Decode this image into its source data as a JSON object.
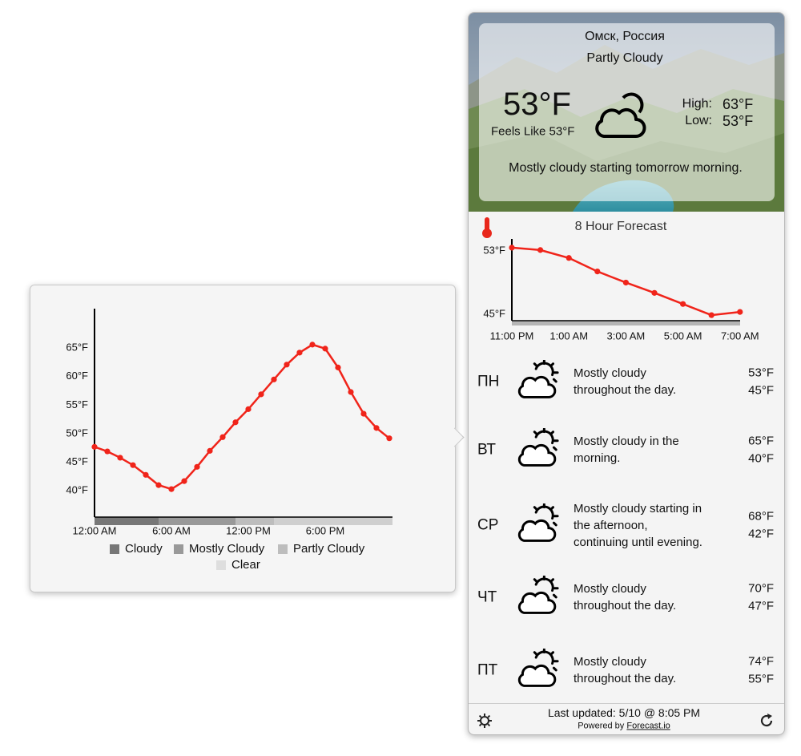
{
  "header": {
    "location": "Омск, Россия",
    "condition": "Partly Cloudy",
    "temperature": "53°F",
    "feels_like": "Feels Like 53°F",
    "high_label": "High:",
    "high": "63°F",
    "low_label": "Low:",
    "low": "53°F",
    "summary": "Mostly cloudy starting tomorrow morning."
  },
  "daily": [
    {
      "day": "ПН",
      "summary": [
        "Mostly cloudy",
        "throughout the day."
      ],
      "high": "53°F",
      "low": "45°F"
    },
    {
      "day": "ВТ",
      "summary": [
        "Mostly cloudy in the",
        "morning."
      ],
      "high": "65°F",
      "low": "40°F"
    },
    {
      "day": "СР",
      "summary": [
        "Mostly cloudy starting in",
        "the afternoon,",
        "continuing until evening."
      ],
      "high": "68°F",
      "low": "42°F"
    },
    {
      "day": "ЧТ",
      "summary": [
        "Mostly cloudy",
        "throughout the day."
      ],
      "high": "70°F",
      "low": "47°F"
    },
    {
      "day": "ПТ",
      "summary": [
        "Mostly cloudy",
        "throughout the day."
      ],
      "high": "74°F",
      "low": "55°F"
    }
  ],
  "footer": {
    "updated": "Last updated: 5/10 @ 8:05 PM",
    "powered_by": "Powered by",
    "link": "Forecast.io"
  },
  "chart_data": [
    {
      "type": "line",
      "title": "8 Hour Forecast",
      "color": "#f0241a",
      "categories": [
        "11:00 PM",
        null,
        "1:00 AM",
        null,
        "3:00 AM",
        null,
        "5:00 AM",
        null,
        "7:00 AM"
      ],
      "values": [
        53.4,
        53.1,
        52.1,
        50.4,
        49.0,
        47.7,
        46.3,
        44.9,
        45.3
      ],
      "ylim": [
        44.2,
        54.5
      ],
      "yticks": [
        {
          "value": 45,
          "label": "45°F"
        },
        {
          "value": 53,
          "label": "53°F"
        }
      ]
    },
    {
      "type": "line",
      "color": "#f0241a",
      "categories": [
        "12:00 AM",
        null,
        null,
        null,
        null,
        null,
        "6:00 AM",
        null,
        null,
        null,
        null,
        null,
        "12:00 PM",
        null,
        null,
        null,
        null,
        null,
        "6:00 PM",
        null,
        null,
        null,
        null,
        null
      ],
      "values": [
        47.7,
        46.9,
        45.8,
        44.5,
        42.8,
        41.0,
        40.3,
        41.7,
        44.2,
        47.0,
        49.4,
        52.0,
        54.3,
        56.9,
        59.5,
        62.1,
        64.2,
        65.6,
        64.9,
        61.6,
        57.3,
        53.5,
        51.0,
        49.2
      ],
      "ylim": [
        35.4,
        71.9
      ],
      "yticks": [
        {
          "value": 40,
          "label": "40°F"
        },
        {
          "value": 45,
          "label": "45°F"
        },
        {
          "value": 50,
          "label": "50°F"
        },
        {
          "value": 55,
          "label": "55°F"
        },
        {
          "value": 60,
          "label": "60°F"
        },
        {
          "value": 65,
          "label": "65°F"
        }
      ],
      "legend": [
        {
          "name": "Cloudy",
          "color": "#777777"
        },
        {
          "name": "Mostly Cloudy",
          "color": "#999999"
        },
        {
          "name": "Partly Cloudy",
          "color": "#bdbdbd"
        },
        {
          "name": "Clear",
          "color": "#dedede"
        }
      ]
    }
  ]
}
